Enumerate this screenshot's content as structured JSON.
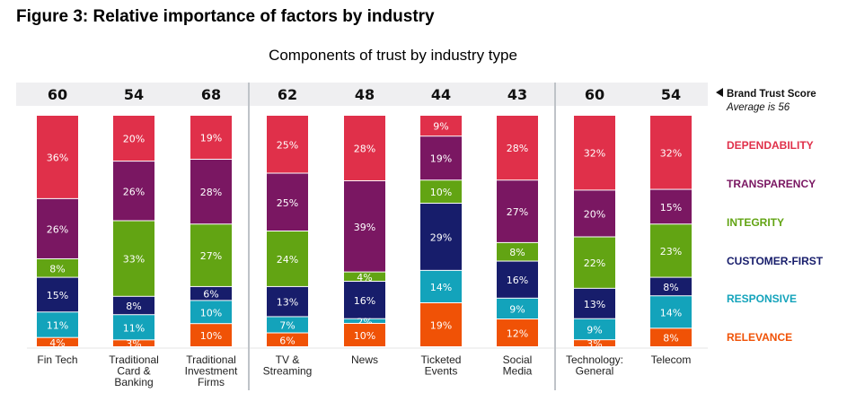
{
  "figure_title": "Figure 3: Relative importance of factors by industry",
  "chart_data": {
    "type": "bar",
    "stacked": true,
    "title": "Components of trust by industry type",
    "categories": [
      [
        "Fin Tech"
      ],
      [
        "Traditional",
        "Card &",
        "Banking"
      ],
      [
        "Traditional",
        "Investment",
        "Firms"
      ],
      [
        "TV &",
        "Streaming"
      ],
      [
        "News"
      ],
      [
        "Ticketed",
        "Events"
      ],
      [
        "Social",
        "Media"
      ],
      [
        "Technology:",
        "General"
      ],
      [
        "Telecom"
      ]
    ],
    "brand_trust_scores": [
      60,
      54,
      68,
      62,
      48,
      44,
      43,
      60,
      54
    ],
    "score_legend": {
      "label": "Brand Trust Score",
      "note": "Average is 56"
    },
    "series": [
      {
        "name": "DEPENDABILITY",
        "color": "#e0304a",
        "values": [
          36,
          20,
          19,
          25,
          28,
          9,
          28,
          32,
          32
        ]
      },
      {
        "name": "TRANSPARENCY",
        "color": "#7a1762",
        "values": [
          26,
          26,
          28,
          25,
          39,
          19,
          27,
          20,
          15
        ]
      },
      {
        "name": "INTEGRITY",
        "color": "#62a413",
        "values": [
          8,
          33,
          27,
          24,
          4,
          10,
          8,
          22,
          23
        ]
      },
      {
        "name": "CUSTOMER-FIRST",
        "color": "#171d6b",
        "values": [
          15,
          8,
          6,
          13,
          16,
          29,
          16,
          13,
          8
        ]
      },
      {
        "name": "RESPONSIVE",
        "color": "#13a3bb",
        "values": [
          11,
          11,
          10,
          7,
          2,
          14,
          9,
          9,
          14
        ]
      },
      {
        "name": "RELEVANCE",
        "color": "#f05206",
        "values": [
          4,
          3,
          10,
          6,
          10,
          19,
          12,
          3,
          8
        ]
      }
    ],
    "value_suffix": "%",
    "groups": [
      [
        0,
        1,
        2
      ],
      [
        3,
        4,
        5,
        6
      ],
      [
        7,
        8
      ]
    ],
    "legend_placement": "right"
  }
}
